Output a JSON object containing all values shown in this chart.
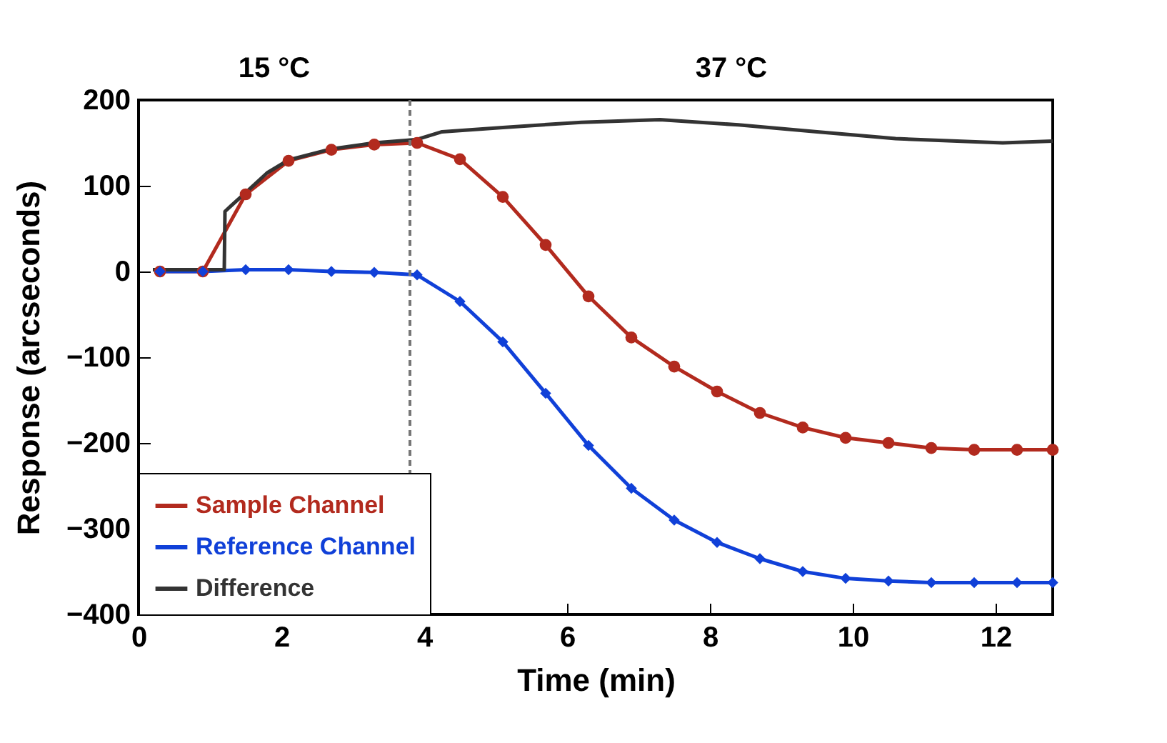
{
  "chart_data": {
    "type": "line",
    "xlabel": "Time (min)",
    "ylabel": "Response (arcseconds)",
    "annotations": [
      "15 °C",
      "37 °C"
    ],
    "xlim": [
      0,
      12.8
    ],
    "xticks": [
      0,
      2,
      4,
      6,
      8,
      10,
      12
    ],
    "ylim": [
      -400,
      200
    ],
    "yticks": [
      -400,
      -300,
      -200,
      -100,
      0,
      100,
      200
    ],
    "grid": false,
    "legend": "bottom left",
    "ref_lines": [
      {
        "axis": "x",
        "value": 3.8,
        "color": "#777777",
        "line_style": "dashed"
      }
    ],
    "series": [
      {
        "name": "Sample Channel",
        "color": "#b22a1e",
        "marker": "circle",
        "x": [
          0.3,
          0.9,
          1.5,
          2.1,
          2.7,
          3.3,
          3.9,
          4.5,
          5.1,
          5.7,
          6.3,
          6.9,
          7.5,
          8.1,
          8.7,
          9.3,
          9.9,
          10.5,
          11.1,
          11.7,
          12.3,
          12.8
        ],
        "values": [
          0,
          0,
          90,
          129,
          142,
          148,
          150,
          131,
          87,
          31,
          -29,
          -77,
          -111,
          -140,
          -165,
          -182,
          -194,
          -200,
          -206,
          -208,
          -208,
          -208
        ]
      },
      {
        "name": "Reference Channel",
        "color": "#1040d8",
        "marker": "diamond",
        "x": [
          0.3,
          0.9,
          1.5,
          2.1,
          2.7,
          3.3,
          3.9,
          4.5,
          5.1,
          5.7,
          6.3,
          6.9,
          7.5,
          8.1,
          8.7,
          9.3,
          9.9,
          10.5,
          11.1,
          11.7,
          12.3,
          12.8
        ],
        "values": [
          0,
          0,
          2,
          2,
          0,
          -1,
          -4,
          -35,
          -82,
          -142,
          -203,
          -253,
          -290,
          -316,
          -335,
          -350,
          -358,
          -361,
          -363,
          -363,
          -363,
          -363
        ]
      },
      {
        "name": "Difference",
        "color": "#333333",
        "marker": "none",
        "x": [
          0.2,
          1.2,
          1.21,
          1.3,
          1.5,
          1.8,
          2.1,
          2.7,
          3.3,
          3.9,
          4.25,
          5.1,
          6.2,
          7.3,
          8.4,
          9.5,
          10.6,
          12.1,
          12.8
        ],
        "values": [
          2,
          2,
          70,
          77,
          92,
          115,
          130,
          143,
          150,
          154,
          163,
          168,
          174,
          177,
          171,
          163,
          155,
          150,
          152
        ]
      }
    ]
  }
}
